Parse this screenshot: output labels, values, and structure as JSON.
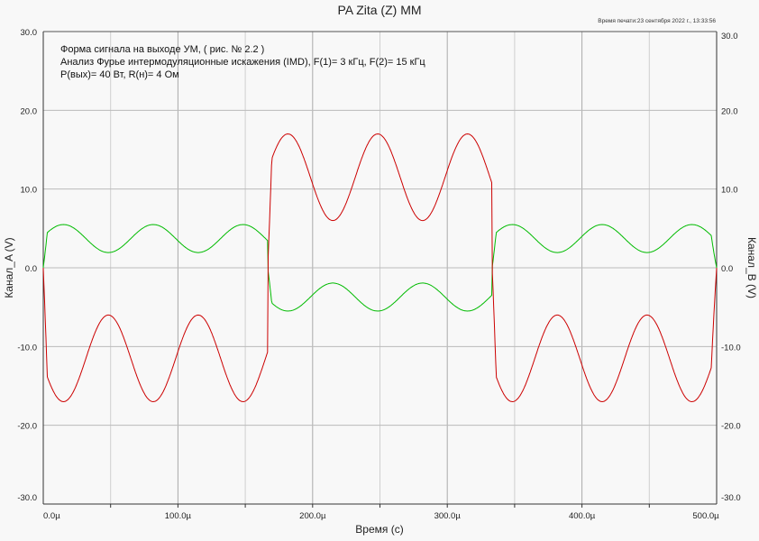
{
  "chart_data": {
    "type": "line",
    "title": "PA Zita (Z) MM",
    "print_time": "Время печати:23 сентября 2022 г., 13:33:56",
    "annotations": [
      "Форма сигнала на выходе УМ, ( рис. № 2.2 )",
      "Анализ Фурье интермодуляционные искажения (IMD), F(1)= 3 кГц, F(2)= 15 кГц",
      "P(вых)= 40 Вт, R(н)= 4 Ом"
    ],
    "xlabel": "Время (с)",
    "ylabel_left": "Канал_A (V)",
    "ylabel_right": "Канал_B (V)",
    "xlim": [
      0,
      500
    ],
    "ylim": [
      -30,
      30
    ],
    "x_unit": "µs",
    "x_ticks": [
      "0.0µ",
      "100.0µ",
      "200.0µ",
      "300.0µ",
      "400.0µ",
      "500.0µ"
    ],
    "y_ticks": [
      "30.0",
      "20.0",
      "10.0",
      "0.0",
      "-10.0",
      "-20.0",
      "-30.0"
    ],
    "grid": true,
    "series": [
      {
        "name": "Канал_A",
        "color": "#cc0000",
        "description_values": {
          "square_freq_khz": 3,
          "ripple_freq_khz": 15,
          "mean_abs": 11.5,
          "ripple_amp": 5.5,
          "peaks": [
            -17,
            -6,
            17,
            6
          ]
        }
      },
      {
        "name": "Канал_B",
        "color": "#00bb00",
        "description_values": {
          "scale_vs_A": -0.323,
          "peaks": [
            5.5,
            2,
            -5.5,
            -2
          ]
        }
      }
    ]
  }
}
